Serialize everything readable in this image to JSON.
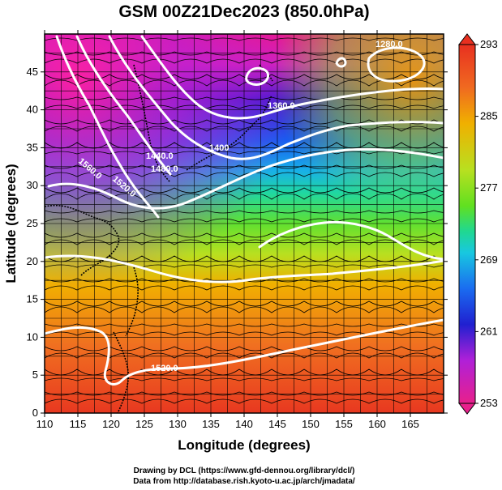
{
  "title": "GSM 00Z21Dec2023 (850.0hPa)",
  "map": {
    "xlabel": "Longitude (degrees)",
    "ylabel": "Latitude  (degrees)",
    "lon_range": [
      110,
      170
    ],
    "lat_range": [
      0,
      50
    ],
    "lon_ticks": [
      "110",
      "115",
      "120",
      "125",
      "130",
      "135",
      "140",
      "145",
      "150",
      "155",
      "160",
      "165"
    ],
    "lat_ticks": [
      "0",
      "5",
      "10",
      "15",
      "20",
      "25",
      "30",
      "35",
      "40",
      "45"
    ],
    "grid": true
  },
  "colorbar": {
    "labels": [
      "293",
      "285",
      "277",
      "269",
      "261",
      "253"
    ],
    "range": [
      253,
      293
    ],
    "colors": [
      "#e8208c",
      "#b020d8",
      "#2020d0",
      "#1a6cf0",
      "#18c8e0",
      "#20d890",
      "#60e020",
      "#b8e020",
      "#f0b000",
      "#f06a20",
      "#e83020"
    ]
  },
  "contours": {
    "labels": [
      "1280.0",
      "1360.0",
      "1400",
      "1440.0",
      "1480.0",
      "1520.0",
      "1560.0",
      "1520.0"
    ]
  },
  "credits": {
    "line1": "Drawing by DCL (https://www.gfd-dennou.org/library/dcl/)",
    "line2": "Data from http://database.rish.kyoto-u.ac.jp/arch/jmadata/"
  }
}
